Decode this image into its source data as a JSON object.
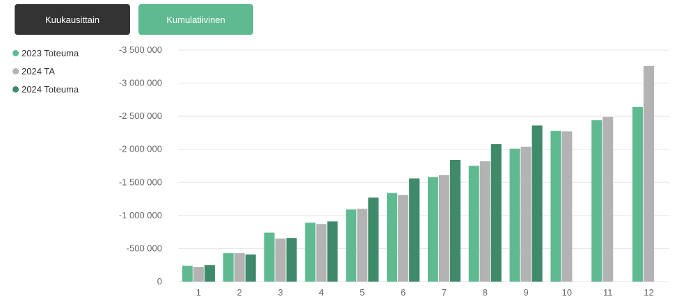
{
  "toolbar": {
    "monthly_label": "Kuukausittain",
    "cumulative_label": "Kumulatiivinen"
  },
  "colors": {
    "s2023": "#5fba92",
    "ta2024": "#b3b3b3",
    "s2024": "#3e8a6a",
    "button_dark": "#333333",
    "button_active": "#5fba92"
  },
  "chart_data": {
    "type": "bar",
    "title": "",
    "xlabel": "",
    "ylabel": "",
    "categories": [
      "1",
      "2",
      "3",
      "4",
      "5",
      "6",
      "7",
      "8",
      "9",
      "10",
      "11",
      "12"
    ],
    "ylim": [
      0,
      -3500000
    ],
    "y_ticks": [
      0,
      -500000,
      -1000000,
      -1500000,
      -2000000,
      -2500000,
      -3000000,
      -3500000
    ],
    "y_tick_labels": [
      "0",
      "-500 000",
      "-1 000 000",
      "-1 500 000",
      "-2 000 000",
      "-2 500 000",
      "-3 000 000",
      "-3 500 000"
    ],
    "grid": true,
    "legend_position": "top-left",
    "series": [
      {
        "name": "2023 Toteuma",
        "values": [
          -240000,
          -430000,
          -740000,
          -890000,
          -1090000,
          -1340000,
          -1580000,
          -1750000,
          -2010000,
          -2280000,
          -2440000,
          -2640000
        ]
      },
      {
        "name": "2024 TA",
        "values": [
          -220000,
          -430000,
          -650000,
          -870000,
          -1100000,
          -1310000,
          -1610000,
          -1820000,
          -2040000,
          -2270000,
          -2490000,
          -3260000
        ]
      },
      {
        "name": "2024 Toteuma",
        "values": [
          -250000,
          -410000,
          -660000,
          -910000,
          -1270000,
          -1560000,
          -1840000,
          -2080000,
          -2360000,
          null,
          null,
          null
        ]
      }
    ]
  }
}
